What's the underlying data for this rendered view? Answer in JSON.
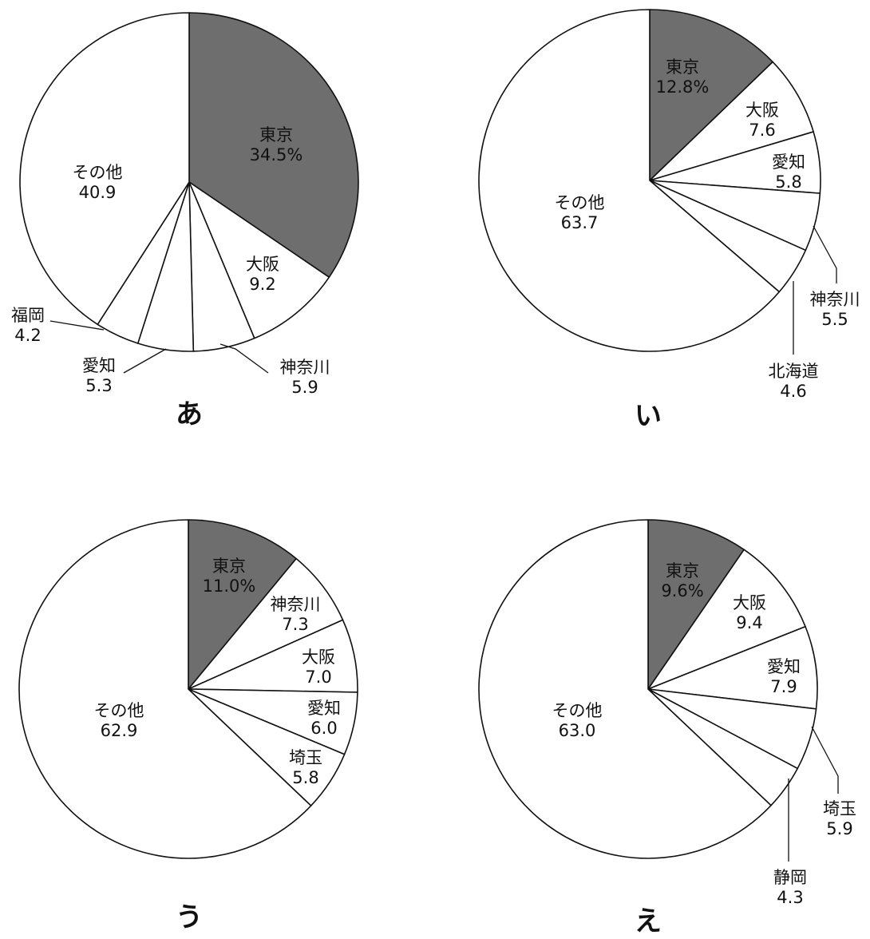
{
  "colors": {
    "highlight": "#6e6e6e",
    "default": "#ffffff",
    "stroke": "#111111"
  },
  "chart_data": [
    {
      "type": "pie",
      "title": "あ",
      "start": "top, clockwise",
      "slices": [
        {
          "name": "東京",
          "value": 34.5,
          "value_text": "34.5%",
          "highlight": true
        },
        {
          "name": "大阪",
          "value": 9.2,
          "value_text": "9.2"
        },
        {
          "name": "神奈川",
          "value": 5.9,
          "value_text": "5.9"
        },
        {
          "name": "愛知",
          "value": 5.3,
          "value_text": "5.3"
        },
        {
          "name": "福岡",
          "value": 4.2,
          "value_text": "4.2"
        },
        {
          "name": "その他",
          "value": 40.9,
          "value_text": "40.9"
        }
      ]
    },
    {
      "type": "pie",
      "title": "い",
      "start": "top, clockwise",
      "slices": [
        {
          "name": "東京",
          "value": 12.8,
          "value_text": "12.8%",
          "highlight": true
        },
        {
          "name": "大阪",
          "value": 7.6,
          "value_text": "7.6"
        },
        {
          "name": "愛知",
          "value": 5.8,
          "value_text": "5.8"
        },
        {
          "name": "神奈川",
          "value": 5.5,
          "value_text": "5.5"
        },
        {
          "name": "北海道",
          "value": 4.6,
          "value_text": "4.6"
        },
        {
          "name": "その他",
          "value": 63.7,
          "value_text": "63.7"
        }
      ]
    },
    {
      "type": "pie",
      "title": "う",
      "start": "top, clockwise",
      "slices": [
        {
          "name": "東京",
          "value": 11.0,
          "value_text": "11.0%",
          "highlight": true
        },
        {
          "name": "神奈川",
          "value": 7.3,
          "value_text": "7.3"
        },
        {
          "name": "大阪",
          "value": 7.0,
          "value_text": "7.0"
        },
        {
          "name": "愛知",
          "value": 6.0,
          "value_text": "6.0"
        },
        {
          "name": "埼玉",
          "value": 5.8,
          "value_text": "5.8"
        },
        {
          "name": "その他",
          "value": 62.9,
          "value_text": "62.9"
        }
      ]
    },
    {
      "type": "pie",
      "title": "え",
      "start": "top, clockwise",
      "slices": [
        {
          "name": "東京",
          "value": 9.6,
          "value_text": "9.6%",
          "highlight": true
        },
        {
          "name": "大阪",
          "value": 9.4,
          "value_text": "9.4"
        },
        {
          "name": "愛知",
          "value": 7.9,
          "value_text": "7.9"
        },
        {
          "name": "埼玉",
          "value": 5.9,
          "value_text": "5.9"
        },
        {
          "name": "静岡",
          "value": 4.3,
          "value_text": "4.3"
        },
        {
          "name": "その他",
          "value": 63.0,
          "value_text": "63.0"
        }
      ]
    }
  ]
}
